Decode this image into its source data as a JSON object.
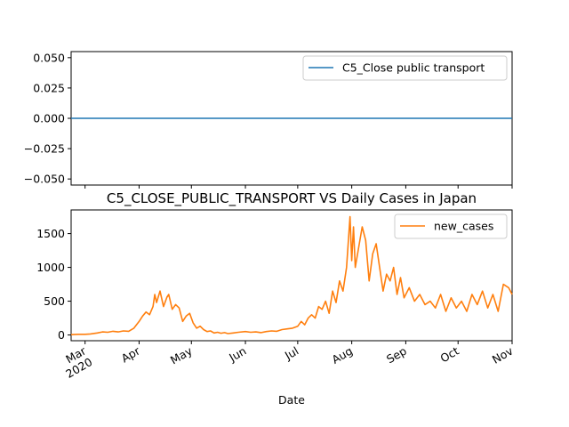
{
  "chart_data": [
    {
      "type": "line",
      "title": "",
      "xlabel": "",
      "ylabel": "",
      "ylim": [
        -0.055,
        0.055
      ],
      "yticks": [
        0.05,
        0.025,
        0.0,
        -0.025,
        -0.05
      ],
      "ytick_labels": [
        "0.050",
        "0.025",
        "0.000",
        "−0.025",
        "−0.050"
      ],
      "x_range": [
        "2020-02-22",
        "2020-11-01"
      ],
      "grid": false,
      "legend_position": "top-right",
      "series": [
        {
          "name": "C5_Close public transport",
          "color": "#1f77b4",
          "x": [
            "2020-02-22",
            "2020-11-01"
          ],
          "values": [
            0,
            0
          ]
        }
      ]
    },
    {
      "type": "line",
      "title": "C5_CLOSE_PUBLIC_TRANSPORT VS Daily Cases in Japan",
      "xlabel": "Date",
      "ylabel": "",
      "ylim": [
        -85,
        1850
      ],
      "yticks": [
        0,
        500,
        1000,
        1500
      ],
      "ytick_labels": [
        "0",
        "500",
        "1000",
        "1500"
      ],
      "x_range": [
        "2020-02-22",
        "2020-11-01"
      ],
      "grid": false,
      "legend_position": "top-right",
      "xtick_dates": [
        "2020-03-01",
        "2020-04-01",
        "2020-05-01",
        "2020-06-01",
        "2020-07-01",
        "2020-08-01",
        "2020-09-01",
        "2020-10-01",
        "2020-11-01"
      ],
      "xtick_labels": [
        "Mar\n2020",
        "Apr",
        "May",
        "Jun",
        "Jul",
        "Aug",
        "Sep",
        "Oct",
        "Nov"
      ],
      "series": [
        {
          "name": "new_cases",
          "color": "#ff7f0e",
          "x": [
            "2020-02-22",
            "2020-02-26",
            "2020-03-01",
            "2020-03-04",
            "2020-03-08",
            "2020-03-11",
            "2020-03-14",
            "2020-03-17",
            "2020-03-20",
            "2020-03-23",
            "2020-03-26",
            "2020-03-29",
            "2020-04-01",
            "2020-04-03",
            "2020-04-05",
            "2020-04-07",
            "2020-04-09",
            "2020-04-10",
            "2020-04-11",
            "2020-04-13",
            "2020-04-15",
            "2020-04-17",
            "2020-04-18",
            "2020-04-20",
            "2020-04-22",
            "2020-04-24",
            "2020-04-26",
            "2020-04-28",
            "2020-04-30",
            "2020-05-02",
            "2020-05-04",
            "2020-05-06",
            "2020-05-08",
            "2020-05-10",
            "2020-05-12",
            "2020-05-14",
            "2020-05-16",
            "2020-05-18",
            "2020-05-20",
            "2020-05-22",
            "2020-05-25",
            "2020-05-28",
            "2020-06-01",
            "2020-06-04",
            "2020-06-07",
            "2020-06-10",
            "2020-06-13",
            "2020-06-16",
            "2020-06-19",
            "2020-06-22",
            "2020-06-25",
            "2020-06-28",
            "2020-07-01",
            "2020-07-03",
            "2020-07-05",
            "2020-07-07",
            "2020-07-09",
            "2020-07-11",
            "2020-07-13",
            "2020-07-15",
            "2020-07-17",
            "2020-07-19",
            "2020-07-21",
            "2020-07-23",
            "2020-07-25",
            "2020-07-27",
            "2020-07-29",
            "2020-07-31",
            "2020-08-01",
            "2020-08-02",
            "2020-08-03",
            "2020-08-05",
            "2020-08-07",
            "2020-08-09",
            "2020-08-11",
            "2020-08-13",
            "2020-08-15",
            "2020-08-17",
            "2020-08-19",
            "2020-08-21",
            "2020-08-23",
            "2020-08-25",
            "2020-08-27",
            "2020-08-29",
            "2020-08-31",
            "2020-09-03",
            "2020-09-06",
            "2020-09-09",
            "2020-09-12",
            "2020-09-15",
            "2020-09-18",
            "2020-09-21",
            "2020-09-24",
            "2020-09-27",
            "2020-09-30",
            "2020-10-03",
            "2020-10-06",
            "2020-10-09",
            "2020-10-12",
            "2020-10-15",
            "2020-10-18",
            "2020-10-21",
            "2020-10-24",
            "2020-10-27",
            "2020-10-30",
            "2020-11-01"
          ],
          "values": [
            5,
            10,
            10,
            15,
            30,
            45,
            40,
            55,
            45,
            60,
            55,
            100,
            200,
            280,
            340,
            300,
            420,
            600,
            480,
            650,
            420,
            560,
            600,
            380,
            450,
            400,
            200,
            280,
            320,
            180,
            100,
            130,
            80,
            50,
            60,
            30,
            40,
            25,
            35,
            20,
            30,
            40,
            50,
            40,
            45,
            35,
            50,
            60,
            55,
            80,
            90,
            100,
            130,
            200,
            150,
            250,
            300,
            250,
            420,
            380,
            500,
            320,
            650,
            480,
            800,
            650,
            1000,
            1750,
            1100,
            1600,
            1000,
            1300,
            1600,
            1400,
            800,
            1200,
            1350,
            1000,
            650,
            900,
            800,
            1000,
            600,
            850,
            550,
            700,
            500,
            600,
            450,
            500,
            400,
            600,
            350,
            550,
            400,
            500,
            350,
            600,
            450,
            650,
            400,
            600,
            350,
            750,
            700,
            600
          ]
        }
      ]
    }
  ]
}
